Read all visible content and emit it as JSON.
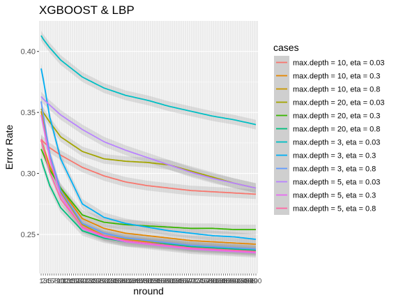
{
  "chart_data": {
    "type": "line",
    "title": "XGBOOST & LBP",
    "xlabel": "nround",
    "ylabel": "Error Rate",
    "x": [
      1,
      2,
      5,
      10,
      20,
      30,
      40,
      50,
      60,
      70,
      80,
      90,
      100
    ],
    "x_tick_labels_note": "tick labels printed 1..100, overlapping",
    "yticks": [
      0.25,
      0.3,
      0.35,
      0.4
    ],
    "ylim": [
      0.218,
      0.425
    ],
    "xlim": [
      1,
      100
    ],
    "grid": true,
    "legend_title": "cases",
    "legend_position": "right",
    "series": [
      {
        "name": "max.depth = 10, eta = 0.03",
        "color": "#F8766D",
        "values": [
          0.328,
          0.326,
          0.321,
          0.315,
          0.305,
          0.298,
          0.293,
          0.29,
          0.288,
          0.286,
          0.285,
          0.284,
          0.283
        ]
      },
      {
        "name": "max.depth = 10, eta = 0.3",
        "color": "#E58700",
        "values": [
          0.327,
          0.322,
          0.306,
          0.287,
          0.263,
          0.255,
          0.251,
          0.249,
          0.247,
          0.245,
          0.244,
          0.243,
          0.242
        ]
      },
      {
        "name": "max.depth = 10, eta = 0.8",
        "color": "#C99800",
        "values": [
          0.351,
          0.342,
          0.314,
          0.285,
          0.258,
          0.249,
          0.246,
          0.244,
          0.242,
          0.24,
          0.239,
          0.238,
          0.237
        ]
      },
      {
        "name": "max.depth = 20, eta = 0.03",
        "color": "#A3A500",
        "values": [
          0.353,
          0.35,
          0.342,
          0.33,
          0.318,
          0.312,
          0.31,
          0.309,
          0.307,
          0.302,
          0.297,
          0.292,
          0.288
        ]
      },
      {
        "name": "max.depth = 20, eta = 0.3",
        "color": "#39B600",
        "values": [
          0.32,
          0.316,
          0.303,
          0.288,
          0.266,
          0.26,
          0.258,
          0.257,
          0.256,
          0.255,
          0.255,
          0.254,
          0.254
        ]
      },
      {
        "name": "max.depth = 20, eta = 0.8",
        "color": "#00BF7D",
        "values": [
          0.312,
          0.306,
          0.29,
          0.272,
          0.253,
          0.247,
          0.244,
          0.243,
          0.242,
          0.24,
          0.239,
          0.238,
          0.237
        ]
      },
      {
        "name": "max.depth = 3, eta = 0.03",
        "color": "#00BFC4",
        "values": [
          0.413,
          0.41,
          0.403,
          0.393,
          0.379,
          0.37,
          0.364,
          0.36,
          0.355,
          0.351,
          0.347,
          0.344,
          0.34
        ]
      },
      {
        "name": "max.depth = 3, eta = 0.3",
        "color": "#00B0F6",
        "values": [
          0.386,
          0.377,
          0.346,
          0.312,
          0.275,
          0.264,
          0.259,
          0.256,
          0.253,
          0.251,
          0.249,
          0.248,
          0.246
        ]
      },
      {
        "name": "max.depth = 3, eta = 0.8",
        "color": "#619CFF",
        "values": [
          0.359,
          0.348,
          0.316,
          0.286,
          0.259,
          0.251,
          0.247,
          0.245,
          0.243,
          0.241,
          0.24,
          0.239,
          0.238
        ]
      },
      {
        "name": "max.depth = 5, eta = 0.03",
        "color": "#B983FF",
        "values": [
          0.363,
          0.361,
          0.356,
          0.348,
          0.336,
          0.326,
          0.319,
          0.313,
          0.307,
          0.301,
          0.296,
          0.292,
          0.288
        ]
      },
      {
        "name": "max.depth = 5, eta = 0.3",
        "color": "#E76BF3",
        "values": [
          0.348,
          0.339,
          0.312,
          0.282,
          0.255,
          0.248,
          0.244,
          0.242,
          0.24,
          0.238,
          0.237,
          0.236,
          0.235
        ]
      },
      {
        "name": "max.depth = 5, eta = 0.8",
        "color": "#FF67A4",
        "values": [
          0.328,
          0.321,
          0.301,
          0.279,
          0.256,
          0.249,
          0.245,
          0.243,
          0.241,
          0.239,
          0.238,
          0.237,
          0.236
        ]
      }
    ]
  }
}
